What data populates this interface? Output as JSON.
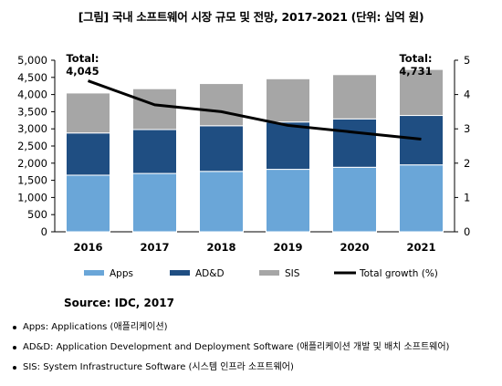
{
  "page": {
    "title": "[그림] 국내 소프트웨어 시장 규모 및 전망, 2017-2021 (단위: 십억 원)",
    "source": "Source: IDC, 2017",
    "notes": [
      "Apps: Applications (애플리케이션)",
      "AD&D: Application Development and Deployment Software (애플리케이션 개발 및 배치 소프트웨어)",
      "SIS: System Infrastructure Software (시스템 인프라 소프트웨어)"
    ]
  },
  "chart_data": {
    "type": "bar",
    "stacked": true,
    "title": "",
    "categories": [
      "2016",
      "2017",
      "2018",
      "2019",
      "2020",
      "2021"
    ],
    "series": [
      {
        "name": "Apps",
        "color": "#6aa6d8",
        "values": [
          1650,
          1700,
          1760,
          1820,
          1880,
          1950
        ]
      },
      {
        "name": "AD&D",
        "color": "#1f4e82",
        "values": [
          1230,
          1280,
          1330,
          1380,
          1410,
          1440
        ]
      },
      {
        "name": "SIS",
        "color": "#a6a6a6",
        "values": [
          1165,
          1190,
          1230,
          1260,
          1290,
          1341
        ]
      }
    ],
    "line": {
      "name": "Total growth (%)",
      "color": "#000000",
      "axis": "right",
      "values": [
        4.4,
        3.7,
        3.5,
        3.1,
        2.9,
        2.7
      ]
    },
    "y_left": {
      "lim": [
        0,
        5000
      ],
      "ticks": [
        "0",
        "500",
        "1,000",
        "1,500",
        "2,000",
        "2,500",
        "3,000",
        "3,500",
        "4,000",
        "4,500",
        "5,000"
      ]
    },
    "y_right": {
      "lim": [
        0,
        5
      ],
      "ticks": [
        "0",
        "1",
        "2",
        "3",
        "4",
        "5"
      ]
    },
    "annotations": [
      {
        "category": "2016",
        "label": "Total:",
        "value": "4,045"
      },
      {
        "category": "2021",
        "label": "Total:",
        "value": "4,731"
      }
    ],
    "legend_position": "bottom",
    "grid": false
  }
}
